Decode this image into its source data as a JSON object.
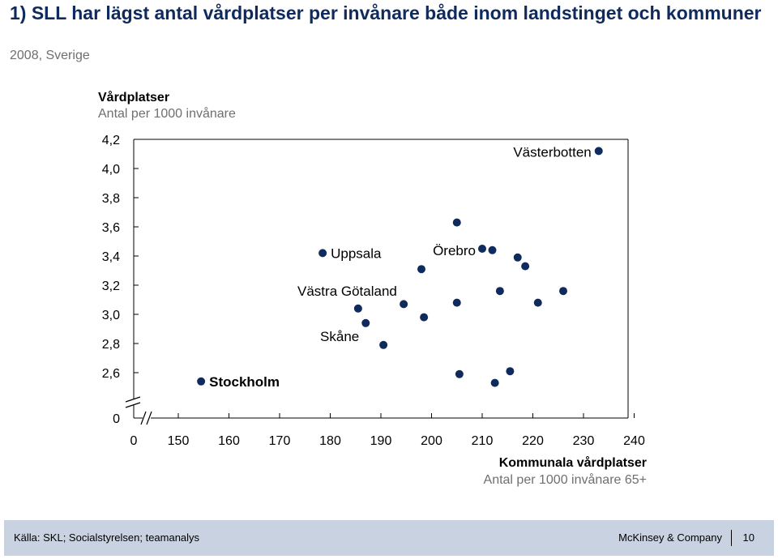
{
  "header": {
    "title": "1) SLL har lägst antal vårdplatser per invånare både inom landstinget och kommuner",
    "subtitle": "2008, Sverige"
  },
  "footer": {
    "source": "Källa: SKL; Socialstyrelsen; teamanalys",
    "brand": "McKinsey & Company",
    "page": "10"
  },
  "chart_data": {
    "type": "scatter",
    "ylabel": "Vårdplatser",
    "ylabel_unit": "Antal per 1000 invånare",
    "xlabel": "Kommunala vårdplatser",
    "xlabel_unit": "Antal per 1000 invånare 65+",
    "x_ticks": [
      "0",
      "150",
      "160",
      "170",
      "180",
      "190",
      "200",
      "210",
      "220",
      "230",
      "240"
    ],
    "y_ticks": [
      "0",
      "2,6",
      "2,8",
      "3,0",
      "3,2",
      "3,4",
      "3,6",
      "3,8",
      "4,0",
      "4,2"
    ],
    "xlim": [
      150,
      240
    ],
    "ylim": [
      2.6,
      4.2
    ],
    "axis_break": true,
    "marker_color": "#0f2a5c",
    "points": [
      {
        "x": 154.5,
        "y": 2.54,
        "label": "Stockholm"
      },
      {
        "x": 178.5,
        "y": 3.42,
        "label": "Uppsala"
      },
      {
        "x": 185.5,
        "y": 3.04,
        "label": "Västra Götaland"
      },
      {
        "x": 187,
        "y": 2.94,
        "label": "Skåne"
      },
      {
        "x": 190.5,
        "y": 2.79
      },
      {
        "x": 194.5,
        "y": 3.07
      },
      {
        "x": 198,
        "y": 3.31
      },
      {
        "x": 198.5,
        "y": 2.98
      },
      {
        "x": 205,
        "y": 3.63
      },
      {
        "x": 205,
        "y": 3.08
      },
      {
        "x": 205.5,
        "y": 2.59
      },
      {
        "x": 210,
        "y": 3.45,
        "label": "Örebro"
      },
      {
        "x": 212,
        "y": 3.44
      },
      {
        "x": 212.5,
        "y": 2.53
      },
      {
        "x": 213.5,
        "y": 3.16
      },
      {
        "x": 215.5,
        "y": 2.61
      },
      {
        "x": 217,
        "y": 3.39
      },
      {
        "x": 218.5,
        "y": 3.33
      },
      {
        "x": 221,
        "y": 3.08
      },
      {
        "x": 226,
        "y": 3.16
      },
      {
        "x": 233,
        "y": 4.12,
        "label": "Västerbotten"
      }
    ]
  }
}
